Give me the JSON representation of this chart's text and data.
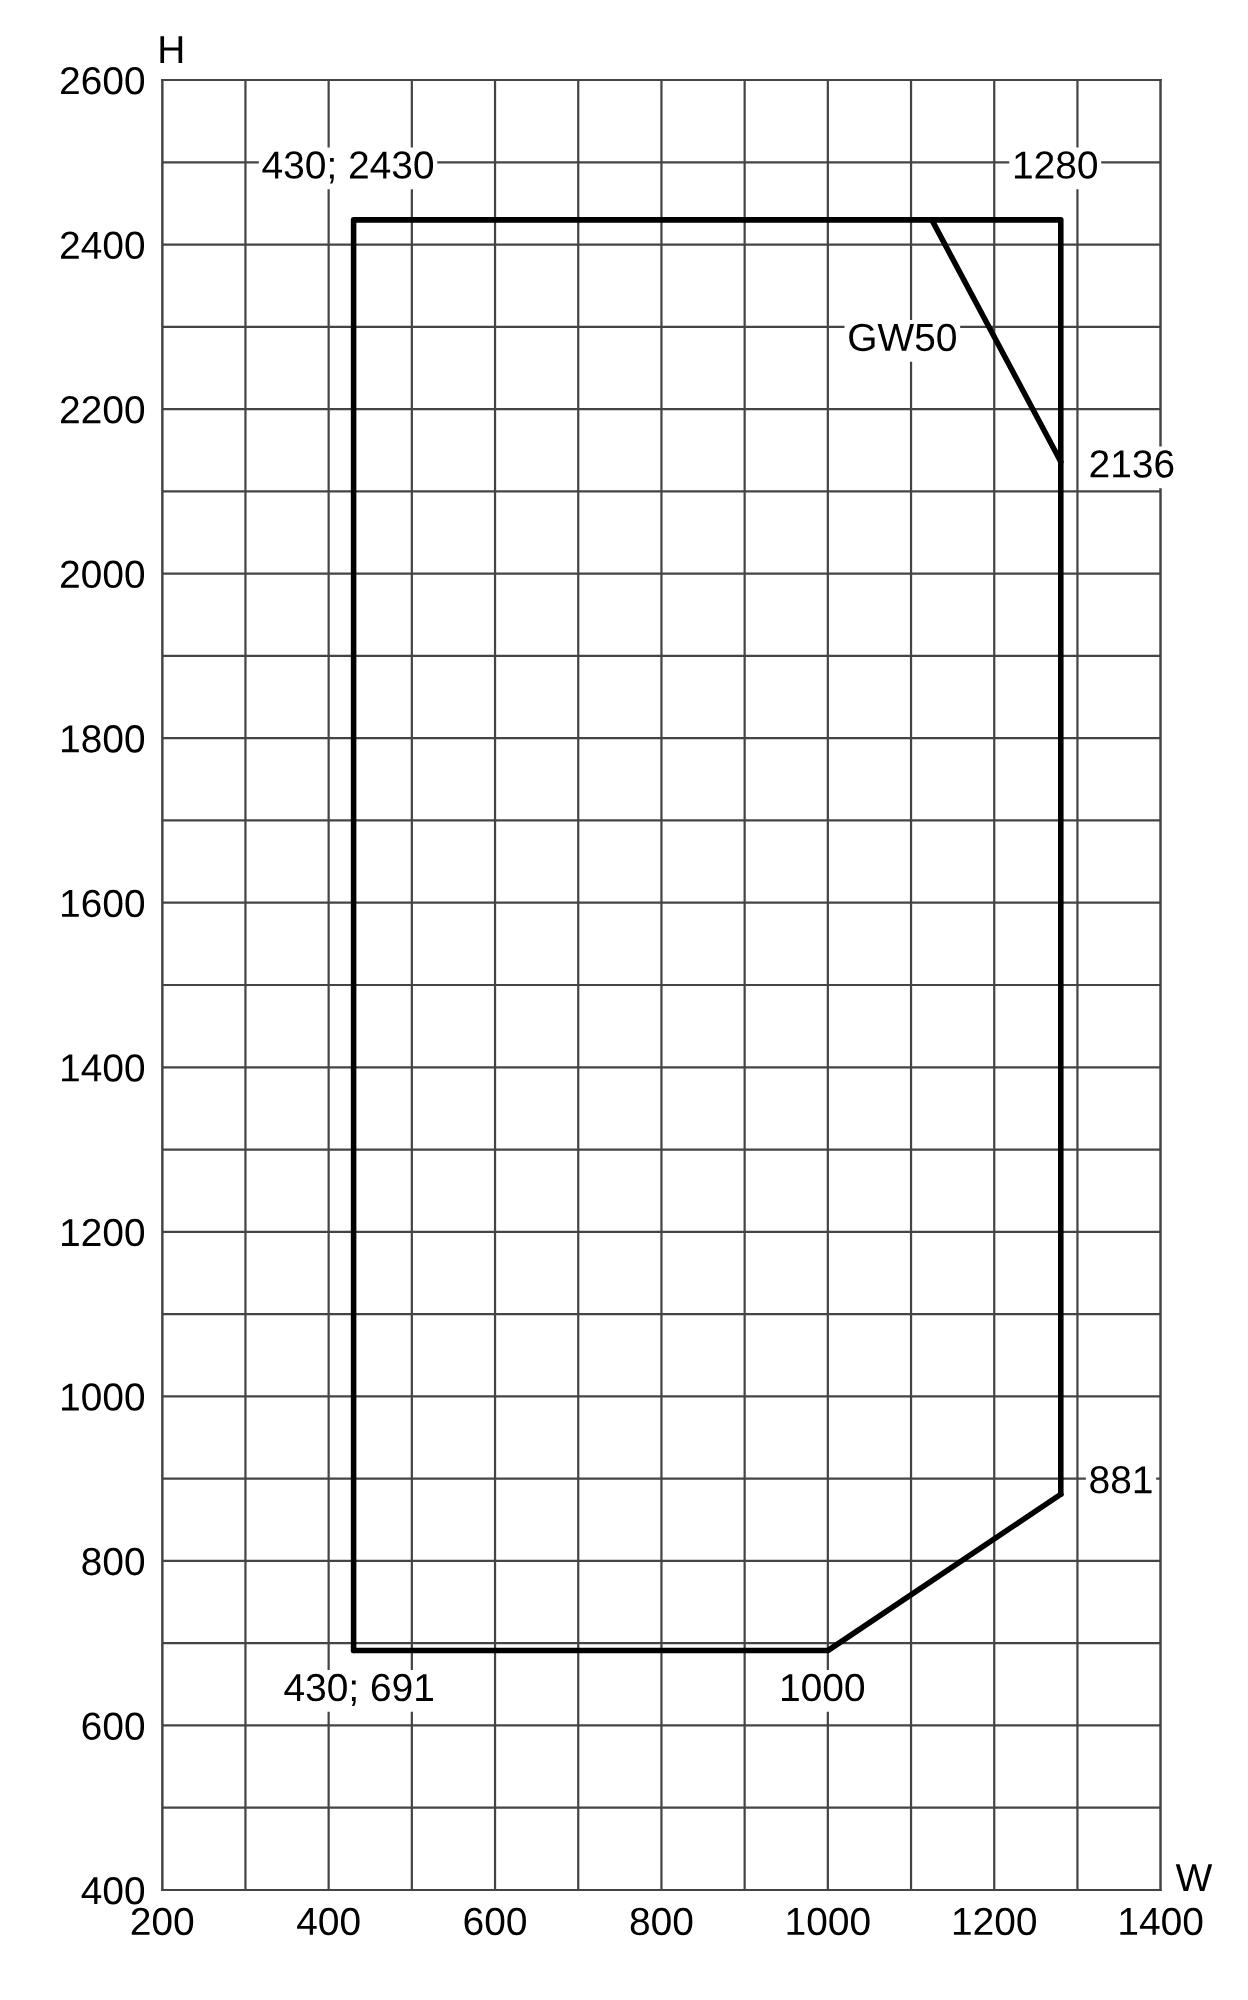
{
  "chart_data": {
    "type": "line",
    "xlabel": "W",
    "ylabel": "H",
    "series": [
      {
        "color": "#000000",
        "x": [
          430,
          430,
          1280,
          1280
        ],
        "values": [
          691,
          2430,
          2430,
          881
        ]
      },
      {
        "color": "#000000",
        "x": [
          430,
          1000,
          1280
        ],
        "values": [
          691,
          691,
          881
        ]
      },
      {
        "name": "GW50",
        "color": "#000000",
        "x": [
          1125,
          1280
        ],
        "values": [
          2430,
          2136
        ]
      }
    ],
    "annotations": [
      {
        "text": "430; 2430",
        "x": 430,
        "y": 2430
      },
      {
        "text": "1280",
        "x": 1280,
        "y": 2430
      },
      {
        "text": "2136",
        "x": 1280,
        "y": 2136
      },
      {
        "text": "881",
        "x": 1280,
        "y": 881
      },
      {
        "text": "1000",
        "x": 1000,
        "y": 691
      },
      {
        "text": "430; 691",
        "x": 430,
        "y": 691
      }
    ],
    "xlim": [
      200,
      1400
    ],
    "xticks": [
      200,
      {
        "value": 300,
        "label": null
      },
      400,
      {
        "value": 500,
        "label": null
      },
      600,
      {
        "value": 700,
        "label": null
      },
      800,
      {
        "value": 900,
        "label": null
      },
      1000,
      {
        "value": 1100,
        "label": null
      },
      1200,
      {
        "value": 1300,
        "label": null
      },
      1400
    ],
    "ylim": [
      400,
      2600
    ],
    "yticks": [
      400,
      {
        "value": 500,
        "label": null
      },
      600,
      {
        "value": 700,
        "label": null
      },
      800,
      {
        "value": 900,
        "label": null
      },
      1000,
      {
        "value": 1100,
        "label": null
      },
      1200,
      {
        "value": 1300,
        "label": null
      },
      1400,
      {
        "value": 1500,
        "label": null
      },
      1600,
      {
        "value": 1700,
        "label": null
      },
      1800,
      {
        "value": 1900,
        "label": null
      },
      2000,
      {
        "value": 2100,
        "label": null
      },
      2200,
      {
        "value": 2300,
        "label": null
      },
      2400,
      {
        "value": 2500,
        "label": null
      },
      2600
    ],
    "grid": true,
    "marker": "none",
    "line_style": "solid",
    "legend": false
  }
}
